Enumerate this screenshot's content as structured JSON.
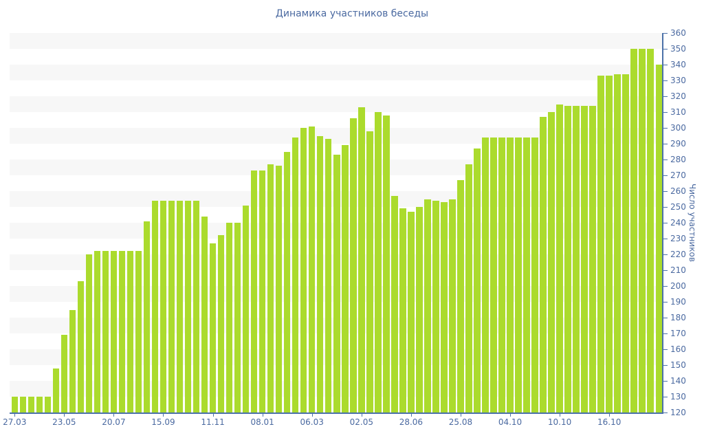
{
  "title": "Динамика участников беседы",
  "y_axis": {
    "label": "Число участников",
    "min": 120,
    "max": 360,
    "step": 10
  },
  "x_axis": {
    "tick_labels": [
      "27.03",
      "23.05",
      "20.07",
      "15.09",
      "11.11",
      "08.01",
      "06.03",
      "02.05",
      "28.06",
      "25.08",
      "04.10",
      "10.10",
      "16.10"
    ],
    "tick_bar_indices": [
      0,
      6,
      12,
      18,
      24,
      30,
      36,
      42,
      48,
      54,
      60,
      66,
      72
    ]
  },
  "colors": {
    "bar": "#abdb2d",
    "text": "#4a69a0",
    "axis": "#4a70a8",
    "stripe": "#f7f7f7",
    "background": "#ffffff"
  },
  "chart_data": {
    "type": "bar",
    "title": "Динамика участников беседы",
    "xlabel": "",
    "ylabel": "Число участников",
    "ylim": [
      120,
      360
    ],
    "y_step": 10,
    "grid": "alternating horizontal bands, gray topmost",
    "legend": "none",
    "x_tick_labels": [
      "27.03",
      "23.05",
      "20.07",
      "15.09",
      "11.11",
      "08.01",
      "06.03",
      "02.05",
      "28.06",
      "25.08",
      "04.10",
      "10.10",
      "16.10"
    ],
    "x_tick_bar_indices": [
      0,
      6,
      12,
      18,
      24,
      30,
      36,
      42,
      48,
      54,
      60,
      66,
      72
    ],
    "values": [
      130,
      130,
      130,
      130,
      130,
      148,
      169,
      185,
      203,
      220,
      222,
      222,
      222,
      222,
      222,
      222,
      241,
      254,
      254,
      254,
      254,
      254,
      254,
      244,
      227,
      232,
      240,
      240,
      251,
      273,
      273,
      277,
      276,
      285,
      294,
      300,
      301,
      295,
      293,
      283,
      289,
      306,
      313,
      298,
      310,
      308,
      257,
      249,
      247,
      250,
      255,
      254,
      253,
      255,
      267,
      277,
      287,
      294,
      294,
      294,
      294,
      294,
      294,
      294,
      307,
      310,
      315,
      314,
      314,
      314,
      314,
      333,
      333,
      334,
      334,
      350,
      350,
      350,
      340
    ]
  }
}
